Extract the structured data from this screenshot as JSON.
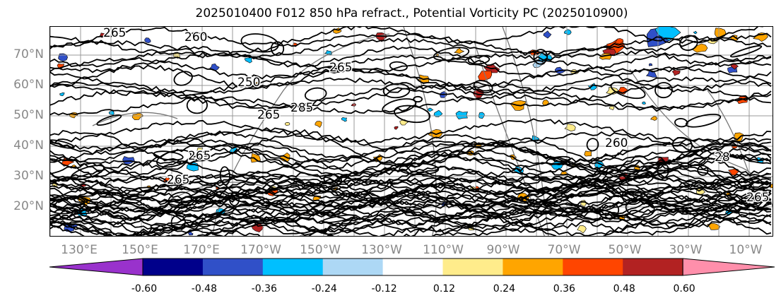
{
  "title": "2025010400 F012 850 hPa refract., Potential Vorticity PC (2025010900)",
  "map": {
    "lat_labels": [
      "70°N",
      "60°N",
      "50°N",
      "40°N",
      "30°N",
      "20°N"
    ],
    "lon_labels": [
      "130°E",
      "150°E",
      "170°E",
      "170°W",
      "150°W",
      "130°W",
      "110°W",
      "90°W",
      "70°W",
      "50°W",
      "30°W",
      "10°W"
    ],
    "contour_labels": [
      "265",
      "260",
      "265",
      "250",
      "265",
      "265",
      "260",
      "265",
      "28",
      "265",
      "285"
    ],
    "grid": true
  },
  "colorbar": {
    "levels": [
      "-0.60",
      "-0.48",
      "-0.36",
      "-0.24",
      "-0.12",
      "0.12",
      "0.24",
      "0.36",
      "0.48",
      "0.60"
    ],
    "colors": [
      "#9932cc",
      "#00008b",
      "#3050c8",
      "#00bfff",
      "#add8f5",
      "#ffffff",
      "#ffec8b",
      "#ffa500",
      "#ff4500",
      "#b22222",
      "#ff8fab"
    ]
  }
}
